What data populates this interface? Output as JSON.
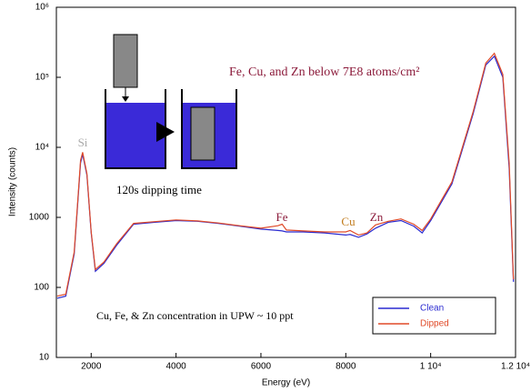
{
  "chart_data": {
    "type": "line",
    "x_label": "Energy (eV)",
    "y_label": "Intensity (counts)",
    "yscale": "log",
    "xlim": [
      1180,
      12000
    ],
    "ylim": [
      10,
      1000000
    ],
    "xticks": [
      2000,
      4000,
      6000,
      8000,
      {
        "value": 10000,
        "label": "1 10⁴"
      },
      {
        "value": 12000,
        "label": "1.2 10⁴"
      }
    ],
    "yticks": [
      10,
      100,
      1000,
      {
        "value": 10000,
        "label": "10⁴"
      },
      {
        "value": 100000,
        "label": "10⁵"
      },
      {
        "value": 1000000,
        "label": "10⁶"
      }
    ],
    "x": [
      1200,
      1400,
      1600,
      1750,
      1800,
      1900,
      2000,
      2100,
      2300,
      2600,
      3000,
      3500,
      4000,
      4500,
      5000,
      5500,
      6000,
      6400,
      6500,
      6600,
      7000,
      7500,
      8000,
      8100,
      8300,
      8500,
      8700,
      9000,
      9300,
      9600,
      9800,
      10000,
      10500,
      11000,
      11300,
      11500,
      11700,
      11850,
      11950
    ],
    "series": [
      {
        "name": "Clean",
        "color": "#2a2ad0",
        "values": [
          70,
          75,
          300,
          6000,
          8000,
          4000,
          600,
          170,
          220,
          400,
          800,
          850,
          900,
          880,
          820,
          750,
          680,
          650,
          640,
          620,
          620,
          600,
          560,
          570,
          520,
          580,
          700,
          850,
          900,
          750,
          600,
          900,
          3000,
          30000,
          150000,
          200000,
          100000,
          5000,
          120
        ]
      },
      {
        "name": "Dipped",
        "color": "#e04a28",
        "values": [
          75,
          80,
          320,
          6500,
          8500,
          4200,
          620,
          180,
          230,
          420,
          820,
          870,
          920,
          890,
          830,
          760,
          700,
          760,
          800,
          660,
          640,
          620,
          620,
          650,
          560,
          600,
          780,
          880,
          950,
          800,
          650,
          950,
          3200,
          32000,
          160000,
          220000,
          110000,
          6000,
          130
        ]
      }
    ],
    "legend": "lower-right",
    "annotations": [
      "Si",
      "Fe",
      "Cu",
      "Zn",
      "Fe, Cu, and Zn below 7E8 atoms/cm²",
      "120s dipping time",
      "Cu, Fe, & Zn concentration in UPW ~ 10 ppt"
    ]
  }
}
